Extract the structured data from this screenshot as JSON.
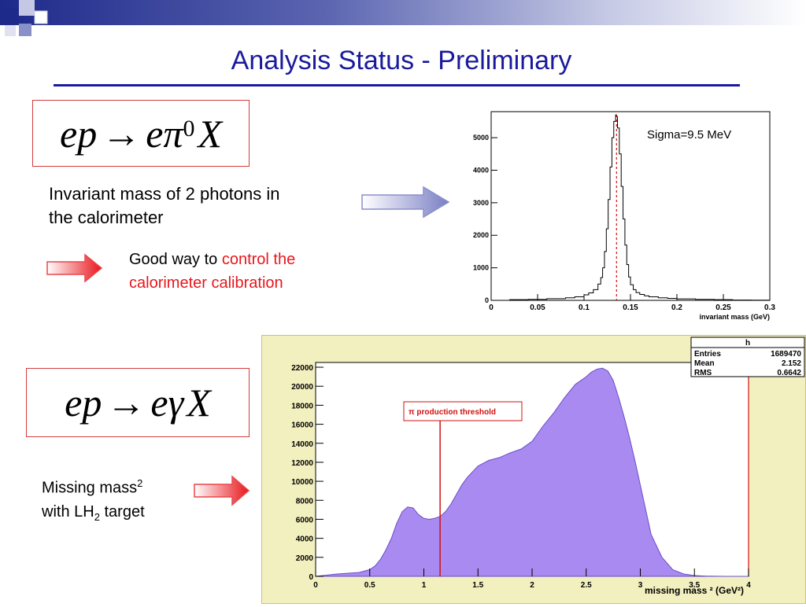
{
  "slide": {
    "title": "Analysis Status - Preliminary",
    "eq1": {
      "lhs": "ep",
      "arrow": "→",
      "rhs_a": "eπ",
      "sup": "0",
      "rhs_b": "X"
    },
    "eq2": {
      "lhs": "ep",
      "arrow": "→",
      "rhs_a": "eγ",
      "rhs_b": "X"
    },
    "text_invariant_line1": "Invariant mass of 2 photons in",
    "text_invariant_line2": "the calorimeter",
    "text_good_way": "Good way to ",
    "text_control_red_1": "control the",
    "text_control_red_2": "calorimeter calibration",
    "text_missing_1": "Missing mass",
    "text_missing_1_sup": "2",
    "text_missing_2a": "with LH",
    "text_missing_2_sub": "2",
    "text_missing_2b": " target",
    "colors": {
      "title": "#1a1a9c",
      "red": "#e8161c",
      "arrow_blue": "#7a7fc4",
      "arrow_red": "#e8161c",
      "fill_purple": "#a98af0"
    }
  },
  "chart_data": [
    {
      "type": "line",
      "title": "",
      "annotation": "Sigma=9.5 MeV",
      "xlabel": "invariant mass (GeV)",
      "ylabel": "",
      "xlim": [
        0,
        0.3
      ],
      "ylim": [
        0,
        5800
      ],
      "xticks": [
        "0",
        "0.05",
        "0.1",
        "0.15",
        "0.2",
        "0.25",
        "0.3"
      ],
      "yticks": [
        "0",
        "1000",
        "2000",
        "3000",
        "4000",
        "5000"
      ],
      "peak_marker_x": 0.135,
      "x": [
        0,
        0.02,
        0.04,
        0.06,
        0.08,
        0.09,
        0.1,
        0.105,
        0.11,
        0.115,
        0.118,
        0.12,
        0.122,
        0.124,
        0.126,
        0.128,
        0.13,
        0.132,
        0.134,
        0.135,
        0.136,
        0.138,
        0.14,
        0.142,
        0.144,
        0.146,
        0.148,
        0.15,
        0.153,
        0.156,
        0.16,
        0.165,
        0.17,
        0.18,
        0.19,
        0.2,
        0.22,
        0.24,
        0.26,
        0.28,
        0.3
      ],
      "y": [
        0,
        20,
        30,
        50,
        80,
        110,
        170,
        230,
        330,
        500,
        700,
        1000,
        1500,
        2200,
        3100,
        4100,
        5000,
        5500,
        5700,
        5650,
        5300,
        4500,
        3500,
        2500,
        1700,
        1100,
        720,
        480,
        330,
        240,
        180,
        140,
        110,
        80,
        60,
        45,
        30,
        20,
        10,
        5,
        0
      ]
    },
    {
      "type": "area",
      "title": "",
      "xlabel": "missing mass ² (GeV²)",
      "ylabel": "",
      "xlim": [
        0,
        4
      ],
      "ylim": [
        0,
        22500
      ],
      "xticks": [
        "0",
        "0.5",
        "1",
        "1.5",
        "2",
        "2.5",
        "3",
        "3.5",
        "4"
      ],
      "yticks": [
        "0",
        "2000",
        "4000",
        "6000",
        "8000",
        "10000",
        "12000",
        "14000",
        "16000",
        "18000",
        "20000",
        "22000"
      ],
      "annotation": "π production threshold",
      "threshold_x": 1.15,
      "stats": {
        "name": "h",
        "rows": [
          [
            "Entries",
            "1689470"
          ],
          [
            "Mean",
            "2.152"
          ],
          [
            "RMS",
            "0.6642"
          ]
        ]
      },
      "x": [
        0,
        0.2,
        0.4,
        0.5,
        0.55,
        0.6,
        0.65,
        0.7,
        0.75,
        0.8,
        0.85,
        0.9,
        0.95,
        1.0,
        1.05,
        1.1,
        1.15,
        1.2,
        1.25,
        1.3,
        1.35,
        1.4,
        1.5,
        1.6,
        1.7,
        1.8,
        1.9,
        2.0,
        2.1,
        2.2,
        2.3,
        2.4,
        2.5,
        2.55,
        2.6,
        2.65,
        2.7,
        2.75,
        2.8,
        2.85,
        2.9,
        2.95,
        3.0,
        3.05,
        3.1,
        3.2,
        3.3,
        3.4,
        3.5,
        3.6,
        3.7,
        3.8,
        4.0
      ],
      "y": [
        0,
        250,
        400,
        700,
        1100,
        1800,
        2800,
        4000,
        5600,
        6800,
        7300,
        7200,
        6500,
        6100,
        6000,
        6100,
        6300,
        6800,
        7600,
        8600,
        9600,
        10400,
        11600,
        12200,
        12500,
        13000,
        13400,
        14200,
        15800,
        17200,
        18800,
        20200,
        21000,
        21500,
        21800,
        21900,
        21600,
        20600,
        18800,
        16800,
        14600,
        12200,
        9600,
        7000,
        4400,
        2000,
        700,
        250,
        80,
        30,
        10,
        0,
        0
      ]
    }
  ]
}
